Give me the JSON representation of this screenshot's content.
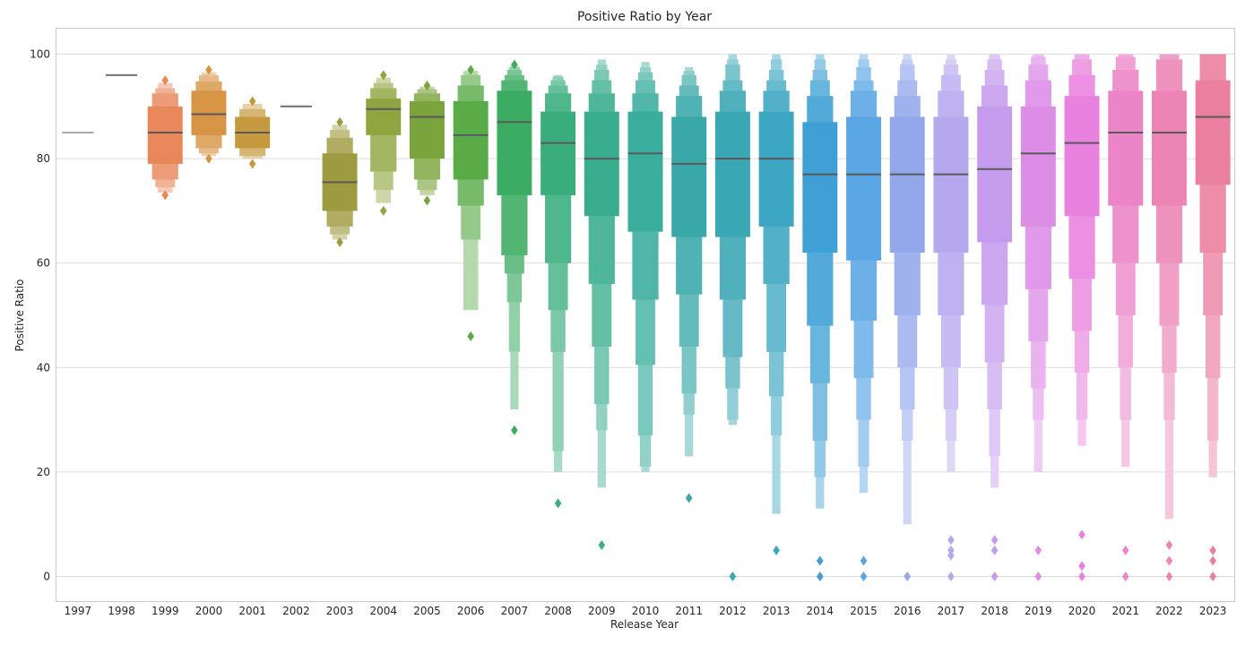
{
  "chart_data": {
    "type": "boxen",
    "title": "Positive Ratio by Year",
    "xlabel": "Release Year",
    "ylabel": "Positive Ratio",
    "ylim": [
      -5,
      105
    ],
    "yticks": [
      0,
      20,
      40,
      60,
      80,
      100
    ],
    "grid": true,
    "categories": [
      "1997",
      "1998",
      "1999",
      "2000",
      "2001",
      "2002",
      "2003",
      "2004",
      "2005",
      "2006",
      "2007",
      "2008",
      "2009",
      "2010",
      "2011",
      "2012",
      "2013",
      "2014",
      "2015",
      "2016",
      "2017",
      "2018",
      "2019",
      "2020",
      "2021",
      "2022",
      "2023"
    ],
    "colors": [
      "#a9a9a9",
      "#6e6e6e",
      "#e8875a",
      "#d79445",
      "#c59a3e",
      "#6e6e6e",
      "#9e9a40",
      "#8fa540",
      "#7ba43c",
      "#59ab48",
      "#3dac63",
      "#3aad7d",
      "#3aad8e",
      "#3aad9c",
      "#3aa8a8",
      "#3aa7b5",
      "#3da6c2",
      "#3ea0d4",
      "#5aa6e4",
      "#93a8eb",
      "#b6a8ee",
      "#c59ced",
      "#dc8ee6",
      "#e882de",
      "#ec85c8",
      "#ec85b6",
      "#eb7fa0"
    ],
    "boxes": [
      {
        "median": 85,
        "levels": []
      },
      {
        "median": 96,
        "levels": []
      },
      {
        "median": 85,
        "levels": [
          [
            79,
            90
          ],
          [
            76,
            92.5
          ],
          [
            74.5,
            93.5
          ],
          [
            73.5,
            94.5
          ]
        ],
        "outliers": [
          95,
          73
        ]
      },
      {
        "median": 88.5,
        "levels": [
          [
            84.5,
            93
          ],
          [
            82,
            94.8
          ],
          [
            81,
            96
          ],
          [
            80.5,
            96.5
          ]
        ],
        "outliers": [
          97,
          80
        ]
      },
      {
        "median": 85,
        "levels": [
          [
            82,
            88
          ],
          [
            80.5,
            89.5
          ],
          [
            80,
            90.5
          ]
        ],
        "outliers": [
          91,
          79
        ]
      },
      {
        "median": 90,
        "levels": []
      },
      {
        "median": 75.5,
        "levels": [
          [
            70,
            81
          ],
          [
            67,
            84
          ],
          [
            65.5,
            85.5
          ],
          [
            64.5,
            86.5
          ]
        ],
        "outliers": [
          87,
          64
        ]
      },
      {
        "median": 89.5,
        "levels": [
          [
            84.5,
            91.5
          ],
          [
            77.5,
            93.5
          ],
          [
            74,
            94.5
          ],
          [
            71.5,
            95.5
          ]
        ],
        "outliers": [
          96,
          70
        ]
      },
      {
        "median": 88,
        "levels": [
          [
            80,
            91
          ],
          [
            76,
            92.5
          ],
          [
            74,
            93.3
          ],
          [
            73,
            93.8
          ]
        ],
        "outliers": [
          94,
          72
        ]
      },
      {
        "median": 84.5,
        "levels": [
          [
            76,
            91
          ],
          [
            71,
            94
          ],
          [
            64.5,
            96
          ],
          [
            51,
            96.8
          ]
        ],
        "outliers": [
          97,
          46
        ]
      },
      {
        "median": 87,
        "levels": [
          [
            73,
            93
          ],
          [
            61.5,
            95
          ],
          [
            58,
            96
          ],
          [
            52.5,
            97
          ],
          [
            43,
            97.5
          ],
          [
            32,
            97.8
          ]
        ],
        "outliers": [
          98,
          28
        ]
      },
      {
        "median": 83,
        "levels": [
          [
            73,
            89
          ],
          [
            60,
            92.5
          ],
          [
            51,
            94
          ],
          [
            43,
            95
          ],
          [
            24,
            95.7
          ],
          [
            20,
            96
          ]
        ],
        "outliers": [
          14
        ]
      },
      {
        "median": 80,
        "levels": [
          [
            69,
            89
          ],
          [
            56,
            92.5
          ],
          [
            44,
            95
          ],
          [
            33,
            97
          ],
          [
            28,
            98
          ],
          [
            17,
            99
          ]
        ],
        "outliers": [
          6
        ]
      },
      {
        "median": 81,
        "levels": [
          [
            66,
            89
          ],
          [
            53,
            92.5
          ],
          [
            40.5,
            95
          ],
          [
            27,
            96.5
          ],
          [
            21,
            97.5
          ],
          [
            20,
            98.5
          ]
        ],
        "outliers": []
      },
      {
        "median": 79,
        "levels": [
          [
            65,
            88
          ],
          [
            54,
            92
          ],
          [
            44,
            94
          ],
          [
            35,
            96
          ],
          [
            31,
            96.8
          ],
          [
            23,
            97.5
          ]
        ],
        "outliers": [
          15
        ]
      },
      {
        "median": 80,
        "levels": [
          [
            65,
            89
          ],
          [
            53,
            93
          ],
          [
            42,
            95
          ],
          [
            36,
            98
          ],
          [
            30,
            99
          ],
          [
            29,
            100
          ]
        ],
        "outliers": [
          0
        ]
      },
      {
        "median": 80,
        "levels": [
          [
            67,
            89
          ],
          [
            56,
            93
          ],
          [
            43,
            95
          ],
          [
            34.5,
            97
          ],
          [
            27,
            99
          ],
          [
            12,
            100
          ]
        ],
        "outliers": [
          5
        ]
      },
      {
        "median": 77,
        "levels": [
          [
            62,
            87
          ],
          [
            48,
            92
          ],
          [
            37,
            95
          ],
          [
            26,
            97
          ],
          [
            19,
            99
          ],
          [
            13,
            100
          ]
        ],
        "outliers": [
          3,
          0
        ]
      },
      {
        "median": 77,
        "levels": [
          [
            60.5,
            88
          ],
          [
            49,
            93
          ],
          [
            38,
            95
          ],
          [
            30,
            97.5
          ],
          [
            21,
            99
          ],
          [
            16,
            100
          ]
        ],
        "outliers": [
          3,
          0
        ]
      },
      {
        "median": 77,
        "levels": [
          [
            62,
            88
          ],
          [
            50,
            92
          ],
          [
            40,
            95
          ],
          [
            32,
            98
          ],
          [
            26,
            99
          ],
          [
            10,
            100
          ]
        ],
        "outliers": [
          0
        ]
      },
      {
        "median": 77,
        "levels": [
          [
            62,
            88
          ],
          [
            50,
            93
          ],
          [
            40,
            96
          ],
          [
            32,
            98
          ],
          [
            26,
            99
          ],
          [
            20,
            100
          ]
        ],
        "outliers": [
          7,
          5,
          4,
          0
        ]
      },
      {
        "median": 78,
        "levels": [
          [
            64,
            90
          ],
          [
            52,
            94
          ],
          [
            41,
            97
          ],
          [
            32,
            99
          ],
          [
            23,
            100
          ],
          [
            17,
            100
          ]
        ],
        "outliers": [
          7,
          5,
          0
        ]
      },
      {
        "median": 81,
        "levels": [
          [
            67,
            90
          ],
          [
            55,
            95
          ],
          [
            45,
            98
          ],
          [
            36,
            99.5
          ],
          [
            30,
            100
          ],
          [
            20,
            100
          ]
        ],
        "outliers": [
          5,
          0
        ]
      },
      {
        "median": 83,
        "levels": [
          [
            69,
            92
          ],
          [
            57,
            96
          ],
          [
            47,
            99
          ],
          [
            39,
            100
          ],
          [
            30,
            100
          ],
          [
            25,
            100
          ]
        ],
        "outliers": [
          8,
          2,
          0
        ]
      },
      {
        "median": 85,
        "levels": [
          [
            71,
            93
          ],
          [
            60,
            97
          ],
          [
            50,
            99.5
          ],
          [
            40,
            100
          ],
          [
            30,
            100
          ],
          [
            21,
            100
          ]
        ],
        "outliers": [
          5,
          0
        ]
      },
      {
        "median": 85,
        "levels": [
          [
            71,
            93
          ],
          [
            60,
            99
          ],
          [
            48,
            100
          ],
          [
            39,
            100
          ],
          [
            30,
            100
          ],
          [
            11,
            100
          ]
        ],
        "outliers": [
          6,
          3,
          0
        ]
      },
      {
        "median": 88,
        "levels": [
          [
            75,
            95
          ],
          [
            62,
            100
          ],
          [
            50,
            100
          ],
          [
            38,
            100
          ],
          [
            26,
            100
          ],
          [
            19,
            100
          ]
        ],
        "outliers": [
          5,
          3,
          0
        ]
      }
    ]
  }
}
